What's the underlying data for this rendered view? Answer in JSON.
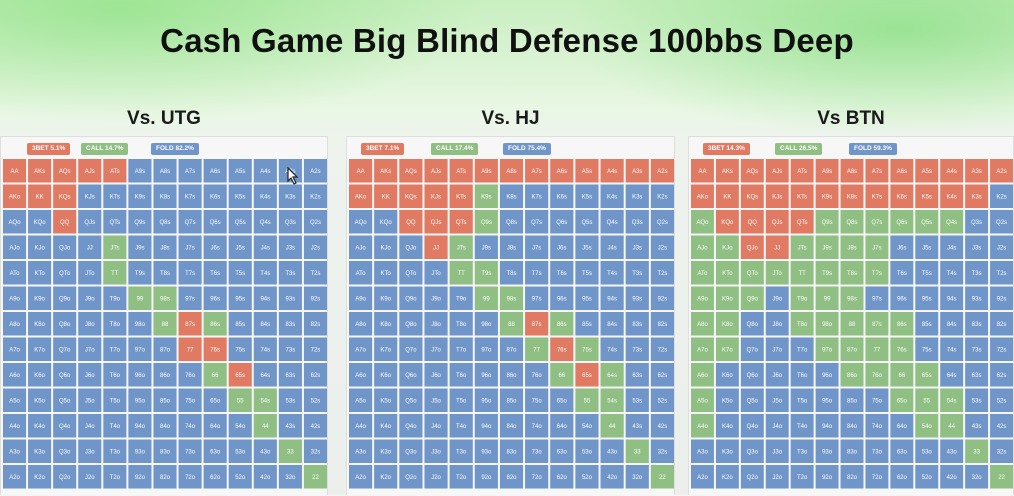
{
  "title": "Cash Game Big Blind Defense 100bbs Deep",
  "colors": {
    "threebet": "#e07a63",
    "call": "#8fbf82",
    "fold": "#6f95c9"
  },
  "panels": [
    {
      "id": "utg",
      "heading": "Vs. UTG",
      "legend": {
        "threebet": "3BET 5.1%",
        "call": "CALL 14.7%",
        "fold": "FOLD 82.2%"
      }
    },
    {
      "id": "hj",
      "heading": "Vs. HJ",
      "legend": {
        "threebet": "3BET 7.1%",
        "call": "CALL 17.4%",
        "fold": "FOLD 75.4%"
      }
    },
    {
      "id": "btn",
      "heading": "Vs BTN",
      "legend": {
        "threebet": "3BET 14.3%",
        "call": "CALL 26.5%",
        "fold": "FOLD 59.3%"
      }
    }
  ],
  "chart_data": [
    {
      "type": "heatmap",
      "title": "Vs. UTG",
      "ranks": [
        "A",
        "K",
        "Q",
        "J",
        "T",
        "9",
        "8",
        "7",
        "6",
        "5",
        "4",
        "3",
        "2"
      ],
      "legend": [
        "3BET 5.1%",
        "CALL 14.7%",
        "FOLD 82.2%"
      ],
      "cells": [
        "RRRRRBBBBBBBB",
        "RRRBBBBBBBBBB",
        "BBRBBBBBBBBBB",
        "BBBBGBBBBBBBB",
        "BBBBGBBBBBBBB",
        "BBBBBGGBBBBBB",
        "BBBBBBGRGBBBB",
        "BBBBBBBRRBBBB",
        "BBBBBBBBGRBBB",
        "BBBBBBBBBGGBB",
        "BBBBBBBBBBGBB",
        "BBBBBBBBBBBGB",
        "BBBBBBBBBBBBG"
      ]
    },
    {
      "type": "heatmap",
      "title": "Vs. HJ",
      "ranks": [
        "A",
        "K",
        "Q",
        "J",
        "T",
        "9",
        "8",
        "7",
        "6",
        "5",
        "4",
        "3",
        "2"
      ],
      "legend": [
        "3BET 7.1%",
        "CALL 17.4%",
        "FOLD 75.4%"
      ],
      "cells": [
        "RRRRRRRRRRRRR",
        "RRRRRGBBBBBBB",
        "BBRRRGBBBBBBB",
        "BBBRGBBBBBBBB",
        "BBBBGGBBBBBBB",
        "BBBBBGGBBBBBB",
        "BBBBBBGRGBBBB",
        "BBBBBBBGRGBBB",
        "BBBBBBBBGRGBB",
        "BBBBBBBBBGGBB",
        "BBBBBBBBBBGBB",
        "BBBBBBBBBBBGB",
        "BBBBBBBBBBBBG"
      ]
    },
    {
      "type": "heatmap",
      "title": "Vs BTN",
      "ranks": [
        "A",
        "K",
        "Q",
        "J",
        "T",
        "9",
        "8",
        "7",
        "6",
        "5",
        "4",
        "3",
        "2"
      ],
      "legend": [
        "3BET 14.3%",
        "CALL 26.5%",
        "FOLD 59.3%"
      ],
      "cells": [
        "RRRRRRRRRRRRR",
        "RRRRRRRRRRRRB",
        "GRRRRGGGGGGBB",
        "GGRRGGGGBBBBB",
        "GGGGGGGGBBBBB",
        "GGGBGGGBBBBBB",
        "GGBBGGGGGBBBB",
        "GGBBBGGGGBBBB",
        "GBBBBBGGGGBBB",
        "GBBBBBBBGGGBB",
        "GBBBBBBBBGGBB",
        "BBBBBBBBBBBGB",
        "BBBBBBBBBBBBG"
      ]
    }
  ]
}
